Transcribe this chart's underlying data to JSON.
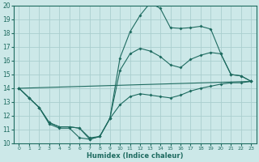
{
  "xlabel": "Humidex (Indice chaleur)",
  "bg_color": "#cce8e8",
  "grid_color": "#aacece",
  "line_color": "#1e6b60",
  "xlim": [
    -0.5,
    23.5
  ],
  "ylim": [
    10,
    20
  ],
  "yticks": [
    10,
    11,
    12,
    13,
    14,
    15,
    16,
    17,
    18,
    19,
    20
  ],
  "xticks": [
    0,
    1,
    2,
    3,
    4,
    5,
    6,
    7,
    8,
    9,
    10,
    11,
    12,
    13,
    14,
    15,
    16,
    17,
    18,
    19,
    20,
    21,
    22,
    23
  ],
  "curve1_x": [
    0,
    1,
    2,
    3,
    4,
    5,
    6,
    7,
    8,
    9,
    10,
    11,
    12,
    13,
    14,
    15,
    16,
    17,
    18,
    19,
    20,
    21,
    22,
    23
  ],
  "curve1_y": [
    14.0,
    13.3,
    12.6,
    11.4,
    11.1,
    11.1,
    10.4,
    10.3,
    10.5,
    11.8,
    16.2,
    18.1,
    19.3,
    20.2,
    19.8,
    18.4,
    18.35,
    18.4,
    18.5,
    18.3,
    16.5,
    15.0,
    14.9,
    14.5
  ],
  "curve2_x": [
    0,
    1,
    2,
    3,
    4,
    5,
    6,
    7,
    8,
    9,
    10,
    11,
    12,
    13,
    14,
    15,
    16,
    17,
    18,
    19,
    20,
    21,
    22,
    23
  ],
  "curve2_y": [
    14.0,
    13.3,
    12.6,
    11.5,
    11.2,
    11.2,
    11.1,
    10.3,
    10.5,
    11.8,
    15.3,
    16.5,
    16.9,
    16.7,
    16.3,
    15.7,
    15.5,
    16.1,
    16.4,
    16.6,
    16.5,
    15.0,
    14.9,
    14.5
  ],
  "curve3_x": [
    0,
    1,
    2,
    3,
    4,
    5,
    6,
    7,
    8,
    9,
    10,
    11,
    12,
    13,
    14,
    15,
    16,
    17,
    18,
    19,
    20,
    21,
    22,
    23
  ],
  "curve3_y": [
    14.0,
    13.3,
    12.6,
    11.5,
    11.2,
    11.2,
    11.1,
    10.4,
    10.5,
    11.8,
    12.8,
    13.4,
    13.6,
    13.5,
    13.4,
    13.3,
    13.5,
    13.8,
    14.0,
    14.15,
    14.3,
    14.4,
    14.4,
    14.5
  ],
  "curve4_x": [
    0,
    23
  ],
  "curve4_y": [
    14.0,
    14.5
  ]
}
